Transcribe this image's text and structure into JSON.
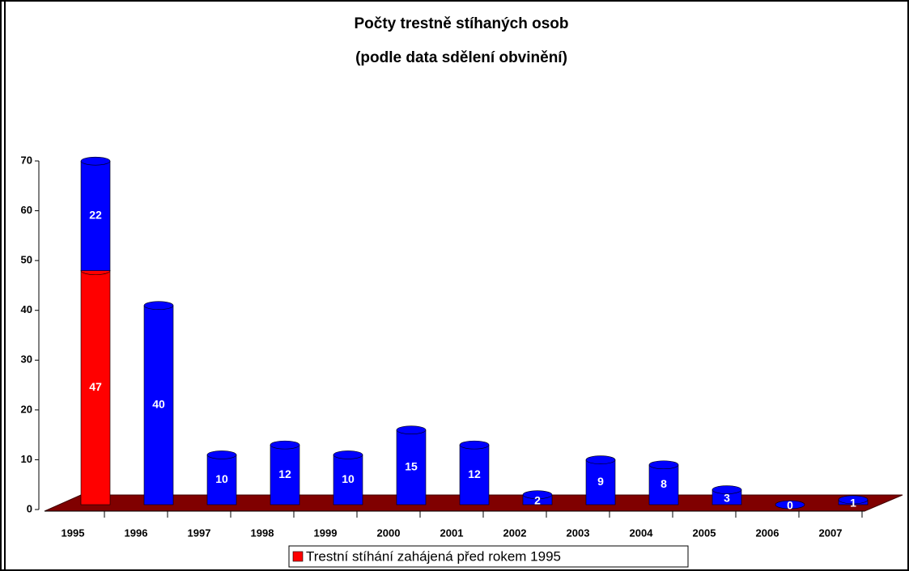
{
  "chart_data": {
    "type": "bar",
    "stacked": true,
    "title": "Počty trestně stíhaných osob",
    "subtitle": "(podle data sdělení obvinění)",
    "categories": [
      "1995",
      "1996",
      "1997",
      "1998",
      "1999",
      "2000",
      "2001",
      "2002",
      "2003",
      "2004",
      "2005",
      "2006",
      "2007"
    ],
    "series": [
      {
        "name": "Trestní stíhání zahájená před rokem 1995",
        "color": "#ff0000",
        "values": [
          47,
          null,
          null,
          null,
          null,
          null,
          null,
          null,
          null,
          null,
          null,
          null,
          null
        ]
      },
      {
        "color": "#0000ff",
        "values": [
          22,
          40,
          10,
          12,
          10,
          15,
          12,
          2,
          9,
          8,
          3,
          0,
          1
        ]
      }
    ],
    "ylim": [
      0,
      70
    ],
    "yticks": [
      0,
      10,
      20,
      30,
      40,
      50,
      60,
      70
    ],
    "floor_color": "#800000"
  }
}
